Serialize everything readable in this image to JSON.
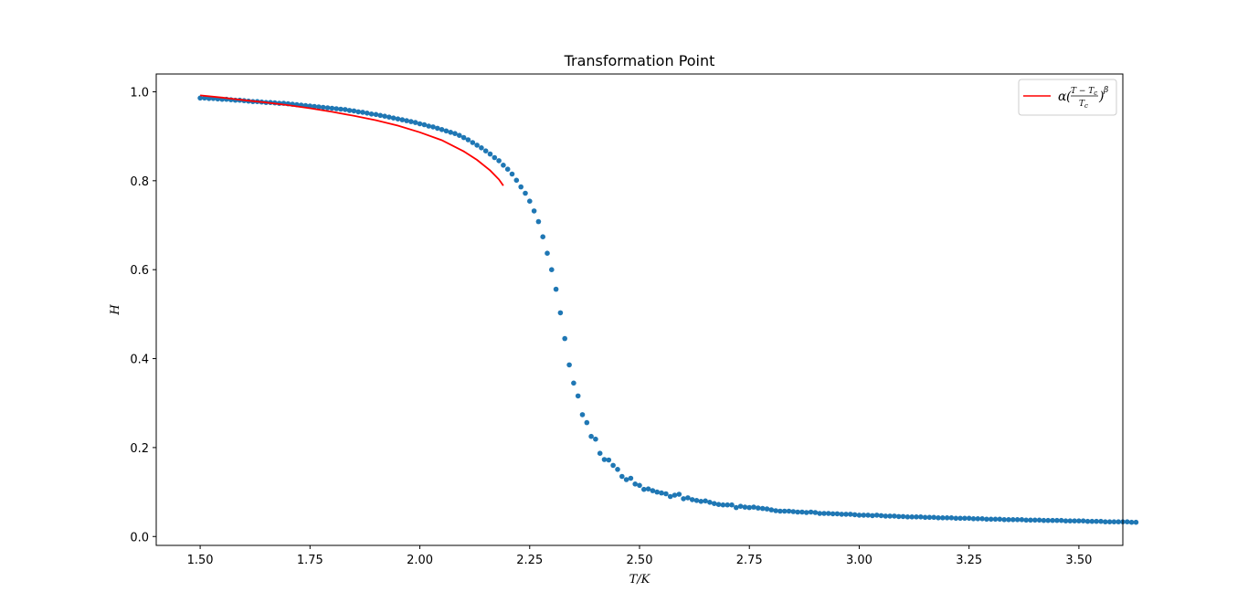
{
  "chart_data": {
    "type": "scatter",
    "title": "Transformation Point",
    "xlabel": "T/K",
    "ylabel": "H",
    "xlim": [
      1.4,
      3.6
    ],
    "ylim": [
      -0.02,
      1.04
    ],
    "xticks": [
      "1.50",
      "1.75",
      "2.00",
      "2.25",
      "2.50",
      "2.75",
      "3.00",
      "3.25",
      "3.50"
    ],
    "yticks": [
      "0.0",
      "0.2",
      "0.4",
      "0.6",
      "0.8",
      "1.0"
    ],
    "grid": false,
    "legend_position": "top-right",
    "legend": {
      "alpha": "α",
      "open_paren": "(",
      "numerator": "T − T",
      "numerator_sub": "c",
      "denominator": "T",
      "denominator_sub": "c",
      "close_paren": ")",
      "exponent": "β"
    },
    "series": [
      {
        "kind": "scatter",
        "color": "#1f77b4",
        "x_start": 1.5,
        "x_step": 0.01,
        "y": [
          0.986,
          0.986,
          0.985,
          0.985,
          0.984,
          0.983,
          0.983,
          0.982,
          0.981,
          0.981,
          0.98,
          0.979,
          0.978,
          0.978,
          0.977,
          0.976,
          0.976,
          0.975,
          0.974,
          0.974,
          0.973,
          0.972,
          0.971,
          0.97,
          0.969,
          0.968,
          0.967,
          0.966,
          0.965,
          0.964,
          0.963,
          0.962,
          0.961,
          0.96,
          0.958,
          0.957,
          0.955,
          0.954,
          0.952,
          0.95,
          0.949,
          0.947,
          0.945,
          0.943,
          0.941,
          0.939,
          0.937,
          0.935,
          0.933,
          0.931,
          0.928,
          0.926,
          0.923,
          0.921,
          0.918,
          0.915,
          0.912,
          0.909,
          0.906,
          0.902,
          0.897,
          0.892,
          0.886,
          0.88,
          0.874,
          0.867,
          0.86,
          0.852,
          0.845,
          0.835,
          0.826,
          0.815,
          0.801,
          0.786,
          0.772,
          0.754,
          0.732,
          0.708,
          0.674,
          0.637,
          0.6,
          0.556,
          0.503,
          0.445,
          0.386,
          0.345,
          0.316,
          0.274,
          0.256,
          0.225,
          0.219,
          0.187,
          0.173,
          0.172,
          0.16,
          0.151,
          0.135,
          0.128,
          0.131,
          0.118,
          0.115,
          0.106,
          0.107,
          0.103,
          0.1,
          0.098,
          0.096,
          0.09,
          0.093,
          0.095,
          0.085,
          0.087,
          0.083,
          0.081,
          0.079,
          0.08,
          0.077,
          0.074,
          0.072,
          0.071,
          0.071,
          0.071,
          0.065,
          0.068,
          0.066,
          0.065,
          0.066,
          0.064,
          0.063,
          0.062,
          0.06,
          0.058,
          0.057,
          0.057,
          0.057,
          0.056,
          0.055,
          0.055,
          0.054,
          0.055,
          0.054,
          0.052,
          0.052,
          0.052,
          0.051,
          0.051,
          0.05,
          0.05,
          0.05,
          0.049,
          0.048,
          0.048,
          0.048,
          0.047,
          0.048,
          0.047,
          0.046,
          0.046,
          0.046,
          0.045,
          0.045,
          0.044,
          0.044,
          0.044,
          0.044,
          0.043,
          0.043,
          0.043,
          0.042,
          0.042,
          0.042,
          0.042,
          0.041,
          0.041,
          0.041,
          0.041,
          0.04,
          0.04,
          0.04,
          0.039,
          0.039,
          0.039,
          0.039,
          0.038,
          0.038,
          0.038,
          0.038,
          0.038,
          0.037,
          0.037,
          0.037,
          0.037,
          0.036,
          0.036,
          0.036,
          0.036,
          0.036,
          0.035,
          0.035,
          0.035,
          0.035,
          0.035,
          0.034,
          0.034,
          0.034,
          0.034,
          0.033,
          0.033,
          0.033,
          0.033,
          0.033,
          0.033,
          0.032,
          0.032
        ]
      },
      {
        "kind": "line",
        "color": "#ff0000",
        "x": [
          1.5,
          1.55,
          1.6,
          1.65,
          1.7,
          1.75,
          1.8,
          1.85,
          1.9,
          1.95,
          2.0,
          2.05,
          2.1,
          2.13,
          2.16,
          2.18,
          2.19
        ],
        "y": [
          0.992,
          0.987,
          0.981,
          0.976,
          0.97,
          0.963,
          0.955,
          0.946,
          0.936,
          0.924,
          0.909,
          0.891,
          0.866,
          0.847,
          0.823,
          0.803,
          0.789
        ]
      }
    ]
  }
}
